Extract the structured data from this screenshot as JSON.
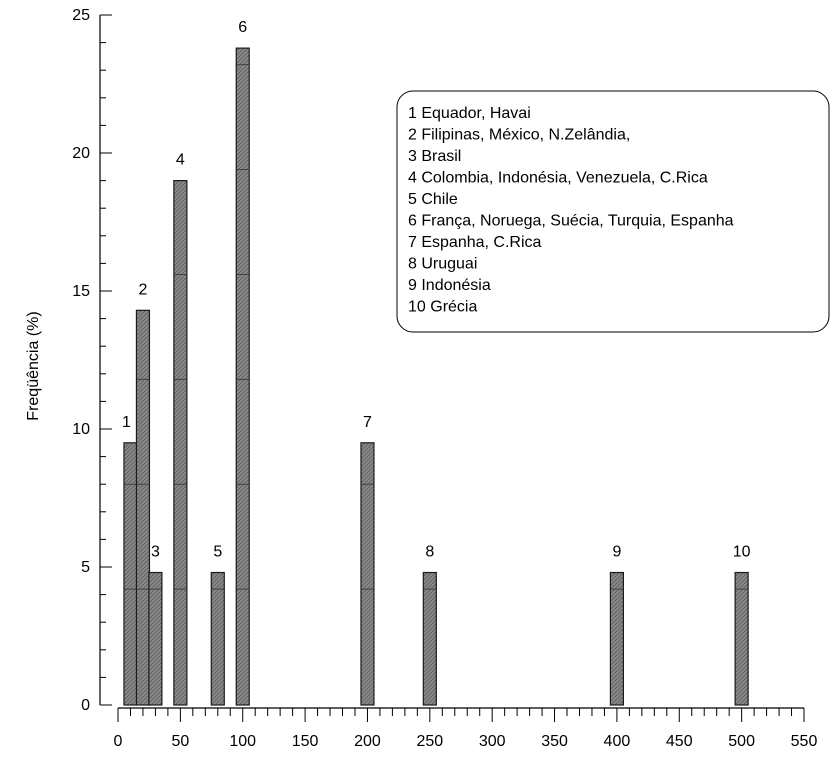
{
  "chart_data": {
    "type": "bar",
    "ylabel": "Freqüência (%)",
    "xlabel": "",
    "xlim": [
      0,
      550
    ],
    "ylim": [
      0,
      25
    ],
    "x_ticks": [
      "0",
      "50",
      "100",
      "150",
      "200",
      "250",
      "300",
      "350",
      "400",
      "450",
      "500",
      "550"
    ],
    "y_ticks": [
      "0",
      "5",
      "10",
      "15",
      "20",
      "25"
    ],
    "grid": false,
    "bars": [
      {
        "label": "1",
        "x": 10,
        "value": 9.5
      },
      {
        "label": "2",
        "x": 20,
        "value": 14.3
      },
      {
        "label": "3",
        "x": 30,
        "value": 4.8
      },
      {
        "label": "4",
        "x": 50,
        "value": 19.0
      },
      {
        "label": "5",
        "x": 80,
        "value": 4.8
      },
      {
        "label": "6",
        "x": 100,
        "value": 23.8
      },
      {
        "label": "7",
        "x": 200,
        "value": 9.5
      },
      {
        "label": "8",
        "x": 250,
        "value": 4.8
      },
      {
        "label": "9",
        "x": 400,
        "value": 4.8
      },
      {
        "label": "10",
        "x": 500,
        "value": 4.8
      }
    ],
    "legend": {
      "placement": "top-right",
      "entries": [
        "1 Equador, Havai",
        "2 Filipinas, México, N.Zelândia,",
        "3 Brasil",
        "4 Colombia, Indonésia, Venezuela, C.Rica",
        "5 Chile",
        "6 França, Noruega, Suécia, Turquia, Espanha",
        "7 Espanha, C.Rica",
        "8 Uruguai",
        "9 Indonésia",
        "10 Grécia"
      ]
    },
    "colors": {
      "bar_fill": "#7f7f7f",
      "bar_stroke": "#1a1a1a",
      "axis": "#000000"
    }
  }
}
